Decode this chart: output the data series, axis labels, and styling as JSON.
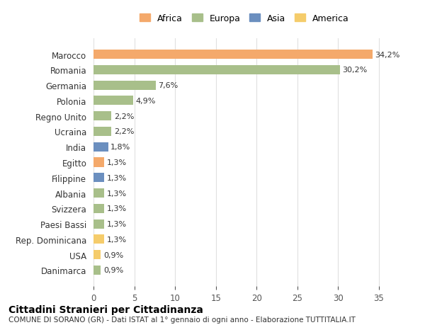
{
  "countries": [
    "Marocco",
    "Romania",
    "Germania",
    "Polonia",
    "Regno Unito",
    "Ucraina",
    "India",
    "Egitto",
    "Filippine",
    "Albania",
    "Svizzera",
    "Paesi Bassi",
    "Rep. Dominicana",
    "USA",
    "Danimarca"
  ],
  "values": [
    34.2,
    30.2,
    7.6,
    4.9,
    2.2,
    2.2,
    1.8,
    1.3,
    1.3,
    1.3,
    1.3,
    1.3,
    1.3,
    0.9,
    0.9
  ],
  "labels": [
    "34,2%",
    "30,2%",
    "7,6%",
    "4,9%",
    "2,2%",
    "2,2%",
    "1,8%",
    "1,3%",
    "1,3%",
    "1,3%",
    "1,3%",
    "1,3%",
    "1,3%",
    "0,9%",
    "0,9%"
  ],
  "continents": [
    "Africa",
    "Europa",
    "Europa",
    "Europa",
    "Europa",
    "Europa",
    "Asia",
    "Africa",
    "Asia",
    "Europa",
    "Europa",
    "Europa",
    "America",
    "America",
    "Europa"
  ],
  "continent_colors": {
    "Africa": "#F4A96B",
    "Europa": "#A8BF8A",
    "Asia": "#6B8FBF",
    "America": "#F5CC6B"
  },
  "legend_order": [
    "Africa",
    "Europa",
    "Asia",
    "America"
  ],
  "title": "Cittadini Stranieri per Cittadinanza",
  "subtitle": "COMUNE DI SORANO (GR) - Dati ISTAT al 1° gennaio di ogni anno - Elaborazione TUTTITALIA.IT",
  "xlabel": "",
  "xlim": [
    0,
    37
  ],
  "xticks": [
    0,
    5,
    10,
    15,
    20,
    25,
    30,
    35
  ],
  "bg_color": "#FFFFFF",
  "grid_color": "#E0E0E0",
  "bar_height": 0.6
}
